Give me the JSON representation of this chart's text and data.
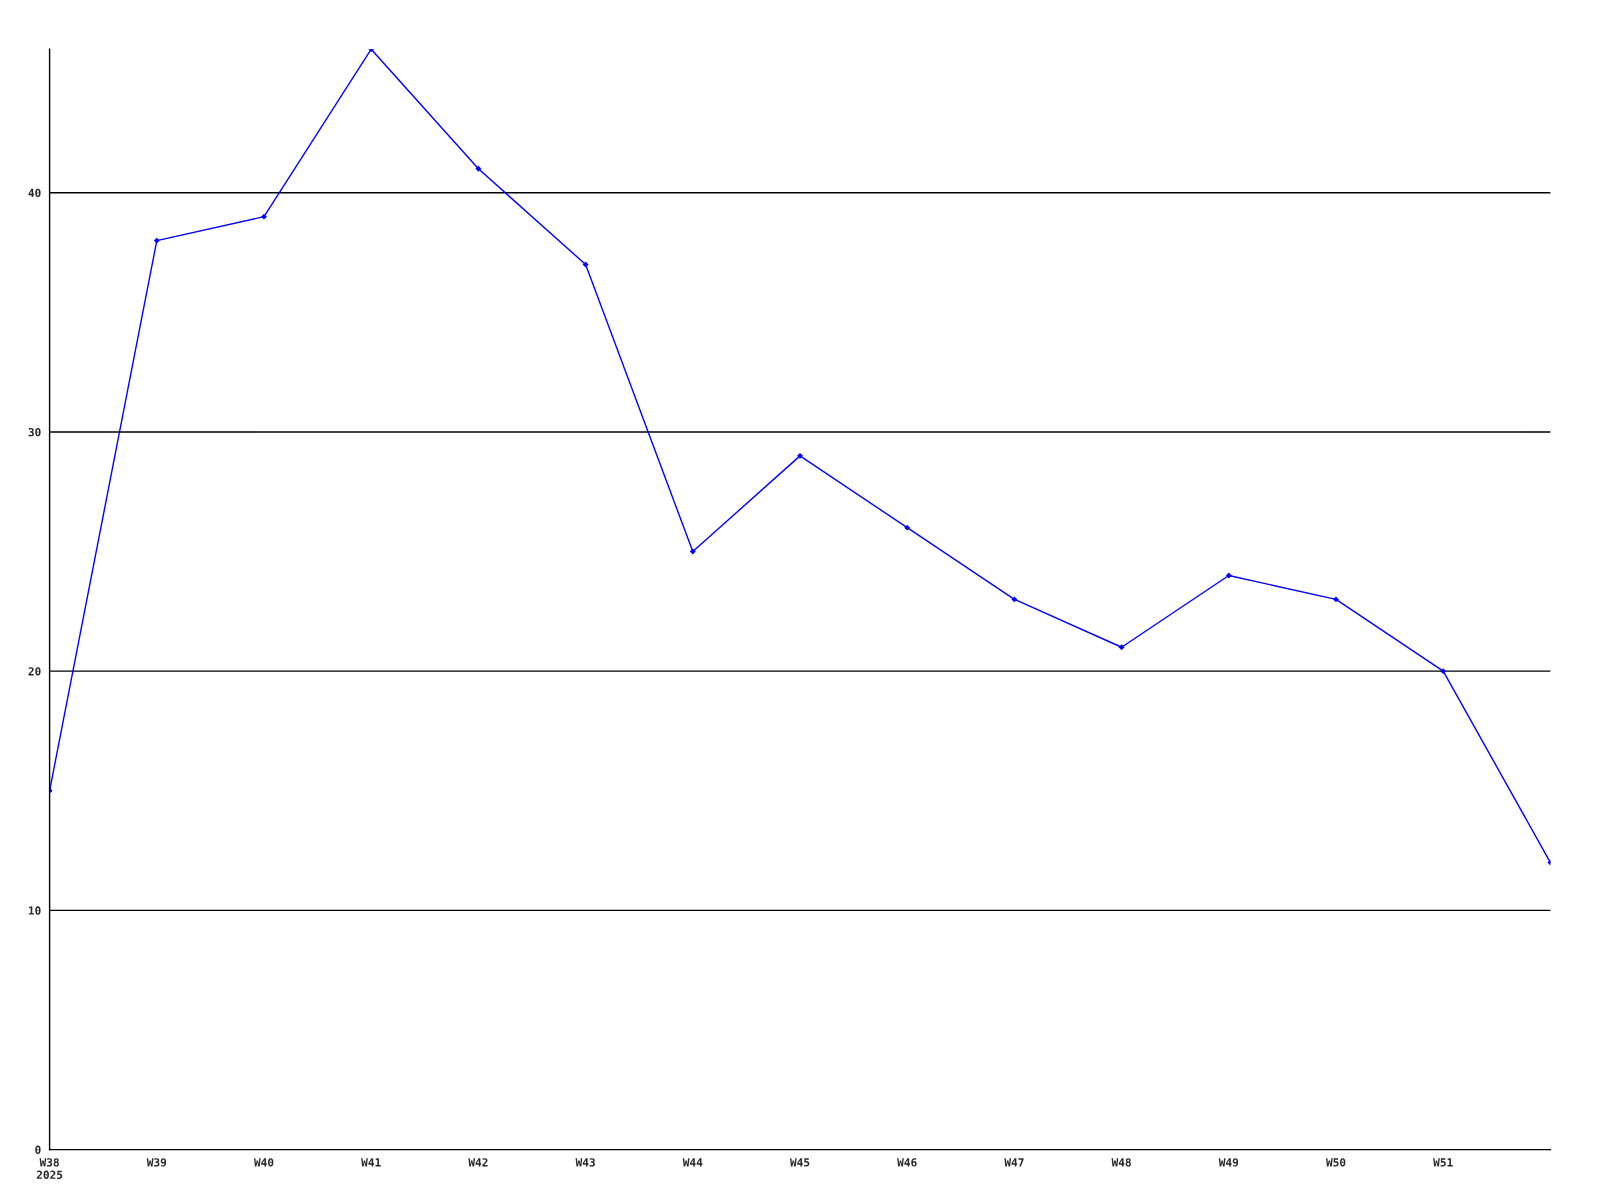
{
  "chart_data": {
    "type": "line",
    "categories": [
      "W38\n2025",
      "W39",
      "W40",
      "W41",
      "W42",
      "W43",
      "W44",
      "W45",
      "W46",
      "W47",
      "W48",
      "W49",
      "W50",
      "W51",
      null
    ],
    "series": [
      {
        "color": "#0000ff",
        "values": [
          15,
          38,
          39,
          46,
          41,
          37,
          25,
          29,
          26,
          23,
          21,
          24,
          23,
          20,
          12
        ]
      }
    ],
    "ylim": [
      0,
      46
    ],
    "yticks": [
      0,
      10,
      20,
      30,
      40
    ],
    "grid": "y",
    "marker": "diamond",
    "line_style": "solid"
  }
}
